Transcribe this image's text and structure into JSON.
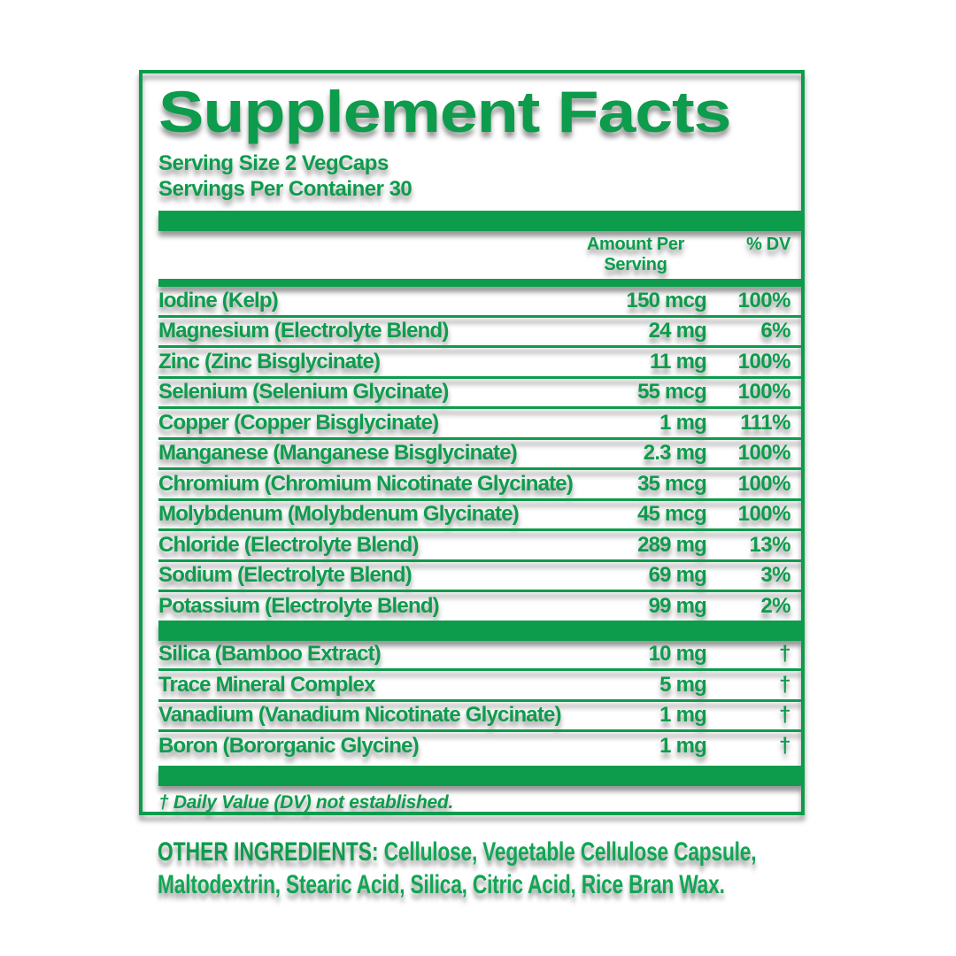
{
  "colors": {
    "green": "#0d9c4c",
    "green_bright": "#11a654"
  },
  "supplement_facts": {
    "title": "Supplement Facts",
    "serving_size": "Serving Size 2 VegCaps",
    "servings_per_container": "Servings Per Container 30",
    "header": {
      "amount_line1": "Amount Per",
      "amount_line2": "Serving",
      "dv": "% DV"
    },
    "main_rows": [
      {
        "name": "Iodine (Kelp)",
        "amount": "150 mcg",
        "dv": "100%"
      },
      {
        "name": "Magnesium (Electrolyte Blend)",
        "amount": "24 mg",
        "dv": "6%"
      },
      {
        "name": "Zinc (Zinc Bisglycinate)",
        "amount": "11 mg",
        "dv": "100%"
      },
      {
        "name": "Selenium (Selenium Glycinate)",
        "amount": "55 mcg",
        "dv": "100%"
      },
      {
        "name": "Copper (Copper Bisglycinate)",
        "amount": "1 mg",
        "dv": "111%"
      },
      {
        "name": "Manganese (Manganese Bisglycinate)",
        "amount": "2.3 mg",
        "dv": "100%"
      },
      {
        "name": "Chromium (Chromium Nicotinate Glycinate)",
        "amount": "35 mcg",
        "dv": "100%"
      },
      {
        "name": "Molybdenum (Molybdenum Glycinate)",
        "amount": "45 mcg",
        "dv": "100%"
      },
      {
        "name": "Chloride (Electrolyte Blend)",
        "amount": "289 mg",
        "dv": "13%"
      },
      {
        "name": "Sodium (Electrolyte Blend)",
        "amount": "69 mg",
        "dv": "3%"
      },
      {
        "name": "Potassium (Electrolyte Blend)",
        "amount": "99 mg",
        "dv": "2%"
      }
    ],
    "secondary_rows": [
      {
        "name": "Silica (Bamboo Extract)",
        "amount": "10 mg",
        "dv": "†"
      },
      {
        "name": "Trace Mineral Complex",
        "amount": "5 mg",
        "dv": "†"
      },
      {
        "name": "Vanadium (Vanadium Nicotinate Glycinate)",
        "amount": "1 mg",
        "dv": "†"
      },
      {
        "name": "Boron (Bororganic Glycine)",
        "amount": "1 mg",
        "dv": "†"
      }
    ],
    "footnote": "† Daily Value (DV) not established."
  },
  "other_ingredients": {
    "heading": "OTHER INGREDIENTS:",
    "text": " Cellulose, Vegetable Cellulose Capsule, Maltodextrin, Stearic Acid, Silica, Citric Acid, Rice Bran Wax."
  }
}
